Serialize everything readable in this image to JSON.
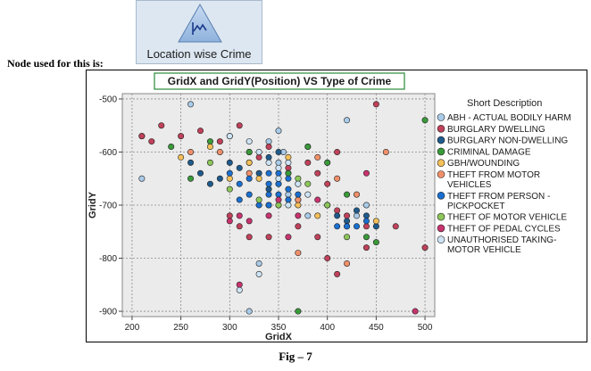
{
  "node": {
    "label": "Location wise Crime",
    "icon": "line-chart-icon"
  },
  "node_used_text": "Node used for this is:",
  "figure_caption": "Fig – 7",
  "chart_data": {
    "type": "scatter",
    "title": "GridX and GridY(Position) VS Type of Crime",
    "xlabel": "GridX",
    "ylabel": "GridY",
    "xlim": [
      190,
      510
    ],
    "ylim": [
      -910,
      -490
    ],
    "xticks": [
      200,
      250,
      300,
      350,
      400,
      450,
      500
    ],
    "xtick_labels": [
      "200",
      "250",
      "300",
      "350",
      "400",
      "450",
      "500"
    ],
    "yticks": [
      -500,
      -600,
      -700,
      -800,
      -900
    ],
    "ytick_labels": [
      "-500",
      "-600",
      "-700",
      "-800",
      "-900"
    ],
    "grid": true,
    "legend_title": "Short Description",
    "legend_position": "right",
    "series": [
      {
        "name": "ABH - ACTUAL BODILY HARM",
        "color": "#a9cbe8",
        "points": [
          [
            210,
            -650
          ],
          [
            260,
            -510
          ],
          [
            300,
            -570
          ],
          [
            340,
            -580
          ],
          [
            350,
            -560
          ],
          [
            355,
            -600
          ],
          [
            360,
            -680
          ],
          [
            370,
            -690
          ],
          [
            420,
            -540
          ],
          [
            330,
            -810
          ],
          [
            320,
            -900
          ],
          [
            380,
            -720
          ],
          [
            430,
            -720
          ],
          [
            440,
            -700
          ],
          [
            350,
            -620
          ],
          [
            210,
            -570
          ]
        ]
      },
      {
        "name": "BURGLARY DWELLING",
        "color": "#c0415a",
        "points": [
          [
            210,
            -570
          ],
          [
            220,
            -580
          ],
          [
            230,
            -550
          ],
          [
            250,
            -570
          ],
          [
            270,
            -560
          ],
          [
            290,
            -580
          ],
          [
            310,
            -550
          ],
          [
            320,
            -600
          ],
          [
            330,
            -610
          ],
          [
            340,
            -590
          ],
          [
            360,
            -630
          ],
          [
            380,
            -620
          ],
          [
            390,
            -640
          ],
          [
            400,
            -660
          ],
          [
            410,
            -600
          ],
          [
            300,
            -720
          ],
          [
            310,
            -740
          ],
          [
            320,
            -760
          ],
          [
            340,
            -760
          ],
          [
            370,
            -740
          ],
          [
            390,
            -760
          ],
          [
            410,
            -710
          ],
          [
            420,
            -720
          ],
          [
            440,
            -740
          ],
          [
            450,
            -510
          ],
          [
            410,
            -830
          ],
          [
            400,
            -800
          ],
          [
            440,
            -780
          ],
          [
            470,
            -740
          ],
          [
            500,
            -780
          ]
        ]
      },
      {
        "name": "BURGLARY NON-DWELLING",
        "color": "#1f5a8c",
        "points": [
          [
            260,
            -620
          ],
          [
            270,
            -640
          ],
          [
            280,
            -660
          ],
          [
            290,
            -650
          ],
          [
            300,
            -620
          ],
          [
            310,
            -630
          ],
          [
            330,
            -640
          ],
          [
            340,
            -610
          ],
          [
            350,
            -600
          ],
          [
            360,
            -640
          ],
          [
            380,
            -590
          ],
          [
            400,
            -620
          ],
          [
            410,
            -720
          ],
          [
            420,
            -730
          ],
          [
            430,
            -710
          ],
          [
            440,
            -720
          ],
          [
            450,
            -740
          ],
          [
            320,
            -620
          ],
          [
            340,
            -670
          ]
        ]
      },
      {
        "name": "CRIMINAL DAMAGE",
        "color": "#3a9a3a",
        "points": [
          [
            240,
            -590
          ],
          [
            280,
            -580
          ],
          [
            320,
            -600
          ],
          [
            360,
            -640
          ],
          [
            380,
            -590
          ],
          [
            400,
            -620
          ],
          [
            420,
            -680
          ],
          [
            440,
            -760
          ],
          [
            450,
            -770
          ],
          [
            500,
            -540
          ],
          [
            370,
            -900
          ],
          [
            260,
            -650
          ]
        ]
      },
      {
        "name": "GBH/WOUNDING",
        "color": "#f4c05a",
        "points": [
          [
            250,
            -610
          ],
          [
            280,
            -590
          ],
          [
            320,
            -620
          ],
          [
            330,
            -650
          ],
          [
            360,
            -610
          ],
          [
            370,
            -700
          ],
          [
            390,
            -720
          ],
          [
            420,
            -740
          ],
          [
            450,
            -730
          ],
          [
            300,
            -650
          ],
          [
            340,
            -700
          ]
        ]
      },
      {
        "name": "THEFT FROM MOTOR VEHICLES",
        "color": "#f0906a",
        "points": [
          [
            260,
            -600
          ],
          [
            290,
            -600
          ],
          [
            320,
            -640
          ],
          [
            350,
            -660
          ],
          [
            370,
            -690
          ],
          [
            390,
            -610
          ],
          [
            410,
            -650
          ],
          [
            430,
            -680
          ],
          [
            460,
            -600
          ],
          [
            420,
            -810
          ],
          [
            370,
            -790
          ],
          [
            400,
            -700
          ]
        ]
      },
      {
        "name": "THEFT FROM PERSON - PICKPOCKET",
        "color": "#1a6fd0",
        "points": [
          [
            300,
            -640
          ],
          [
            310,
            -660
          ],
          [
            320,
            -680
          ],
          [
            330,
            -700
          ],
          [
            340,
            -640
          ],
          [
            340,
            -660
          ],
          [
            340,
            -680
          ],
          [
            340,
            -700
          ],
          [
            350,
            -640
          ],
          [
            350,
            -660
          ],
          [
            350,
            -680
          ],
          [
            350,
            -700
          ],
          [
            360,
            -650
          ],
          [
            360,
            -670
          ],
          [
            360,
            -690
          ],
          [
            370,
            -660
          ],
          [
            370,
            -680
          ],
          [
            310,
            -690
          ],
          [
            320,
            -650
          ],
          [
            410,
            -740
          ],
          [
            420,
            -740
          ],
          [
            430,
            -740
          ],
          [
            440,
            -730
          ]
        ]
      },
      {
        "name": "THEFT OF MOTOR VEHICLE",
        "color": "#8cc65a",
        "points": [
          [
            280,
            -620
          ],
          [
            300,
            -670
          ],
          [
            330,
            -690
          ],
          [
            380,
            -660
          ],
          [
            400,
            -700
          ],
          [
            420,
            -760
          ],
          [
            350,
            -700
          ],
          [
            370,
            -650
          ]
        ]
      },
      {
        "name": "THEFT OF PEDAL CYCLES",
        "color": "#c8336e",
        "points": [
          [
            300,
            -730
          ],
          [
            310,
            -720
          ],
          [
            320,
            -730
          ],
          [
            340,
            -720
          ],
          [
            370,
            -720
          ],
          [
            360,
            -760
          ],
          [
            390,
            -690
          ],
          [
            310,
            -850
          ],
          [
            440,
            -640
          ],
          [
            490,
            -900
          ],
          [
            350,
            -690
          ]
        ]
      },
      {
        "name": "UNAUTHORISED TAKING-MOTOR VEHICLE",
        "color": "#cde4f5",
        "points": [
          [
            300,
            -570
          ],
          [
            320,
            -580
          ],
          [
            330,
            -600
          ],
          [
            340,
            -620
          ],
          [
            350,
            -630
          ],
          [
            360,
            -620
          ],
          [
            370,
            -660
          ],
          [
            380,
            -680
          ],
          [
            310,
            -860
          ],
          [
            330,
            -830
          ],
          [
            350,
            -650
          ],
          [
            360,
            -700
          ]
        ]
      }
    ],
    "legend_labels": [
      [
        "ABH - ACTUAL BODILY HARM"
      ],
      [
        "BURGLARY DWELLING"
      ],
      [
        "BURGLARY NON-DWELLING"
      ],
      [
        "CRIMINAL DAMAGE"
      ],
      [
        "GBH/WOUNDING"
      ],
      [
        "THEFT FROM MOTOR",
        "VEHICLES"
      ],
      [
        "THEFT FROM PERSON -",
        "PICKPOCKET"
      ],
      [
        "THEFT OF MOTOR VEHICLE"
      ],
      [
        "THEFT OF PEDAL CYCLES"
      ],
      [
        "UNAUTHORISED TAKING-",
        "MOTOR VEHICLE"
      ]
    ]
  }
}
